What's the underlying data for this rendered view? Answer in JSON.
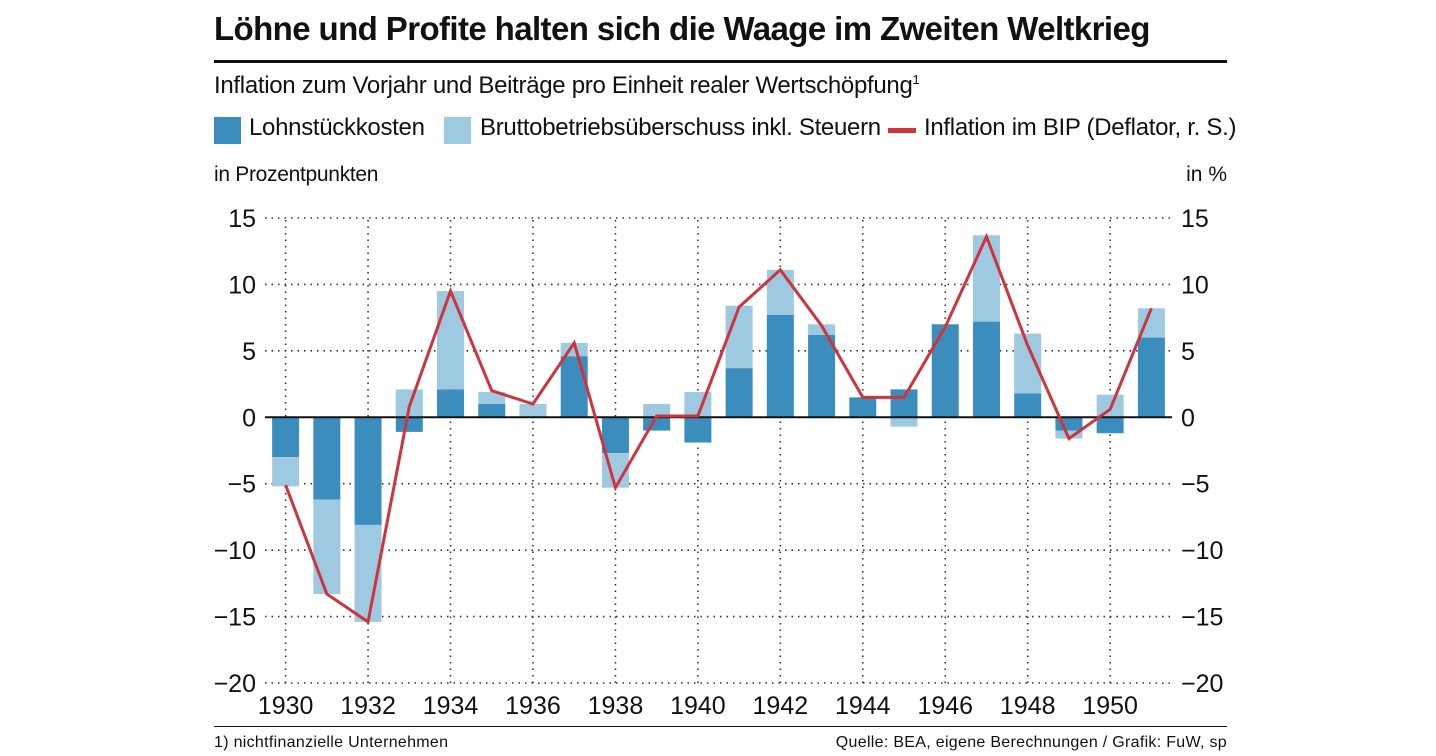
{
  "header": {
    "title": "Löhne und Profite halten sich die Waage im Zweiten Weltkrieg",
    "subtitle": "Inflation zum Vorjahr und Beiträge pro Einheit realer Wertschöpfung",
    "subtitle_footnote_mark": "1"
  },
  "legend": {
    "labor": "Lohnstückkosten",
    "surplus": "Bruttobetriebsüberschuss inkl. Steuern",
    "inflation": "Inflation im BIP (Deflator, r. S.)"
  },
  "axes": {
    "left_unit": "in Prozentpunkten",
    "right_unit": "in %"
  },
  "footer": {
    "footnote": "1) nichtfinanzielle Unternehmen",
    "source": "Quelle: BEA, eigene Berechnungen / Grafik: FuW, sp"
  },
  "colors": {
    "labor": "#3a8dbd",
    "surplus": "#9ecae1",
    "inflation": "#d1333c"
  },
  "chart_data": {
    "type": "bar",
    "stacked": true,
    "categories": [
      1930,
      1931,
      1932,
      1933,
      1934,
      1935,
      1936,
      1937,
      1938,
      1939,
      1940,
      1941,
      1942,
      1943,
      1944,
      1945,
      1946,
      1947,
      1948,
      1949,
      1950,
      1951
    ],
    "x_tick_labels": [
      "1930",
      "1932",
      "1934",
      "1936",
      "1938",
      "1940",
      "1942",
      "1944",
      "1946",
      "1948",
      "1950"
    ],
    "y_tick_labels": [
      "15",
      "10",
      "5",
      "0",
      "−5",
      "−10",
      "−15",
      "−20"
    ],
    "ylim": [
      -20,
      15
    ],
    "yticks": [
      15,
      10,
      5,
      0,
      -5,
      -10,
      -15,
      -20
    ],
    "series": [
      {
        "name": "Lohnstückkosten",
        "kind": "bar",
        "values": [
          -3.0,
          -6.2,
          -8.1,
          -1.1,
          2.1,
          1.0,
          0.0,
          4.6,
          -2.7,
          -1.0,
          -1.9,
          3.7,
          7.7,
          6.2,
          1.5,
          2.1,
          7.0,
          7.2,
          1.8,
          -1.0,
          -1.2,
          6.0
        ]
      },
      {
        "name": "Bruttobetriebsüberschuss inkl. Steuern",
        "kind": "bar",
        "values": [
          -2.2,
          -7.1,
          -7.3,
          2.1,
          7.4,
          0.9,
          1.0,
          1.0,
          -2.6,
          1.0,
          1.9,
          4.7,
          3.4,
          0.8,
          0.0,
          -0.7,
          0.0,
          6.5,
          4.5,
          -0.6,
          1.7,
          2.2
        ]
      },
      {
        "name": "Inflation im BIP (Deflator, r. S.)",
        "kind": "line",
        "values": [
          -5.1,
          -13.3,
          -15.4,
          0.8,
          9.5,
          2.0,
          1.0,
          5.6,
          -5.3,
          0.1,
          0.1,
          8.3,
          11.1,
          6.9,
          1.5,
          1.5,
          6.8,
          13.6,
          5.4,
          -1.6,
          0.6,
          8.2
        ]
      }
    ]
  }
}
